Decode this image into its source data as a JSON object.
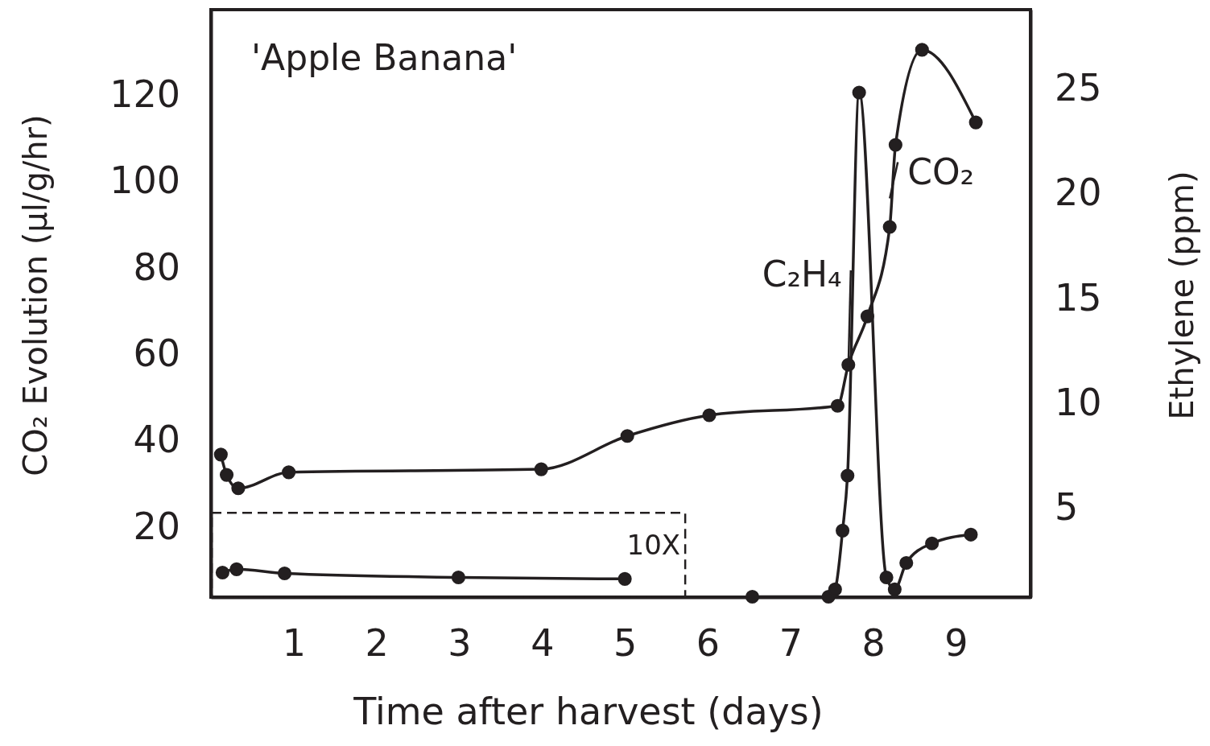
{
  "chart_data": {
    "type": "line",
    "title": "'Apple Banana'",
    "xlabel": "Time after harvest (days)",
    "ylabel": "CO₂ Evolution (µl/g/hr)",
    "y2label": "Ethylene (ppm)",
    "xlim": [
      0,
      9.9
    ],
    "xticks": [
      1,
      2,
      3,
      4,
      5,
      6,
      7,
      8,
      9
    ],
    "ylim": [
      3.7,
      139.7
    ],
    "yticks": [
      20,
      40,
      60,
      80,
      100,
      120
    ],
    "y2lim": [
      0.75,
      28.75
    ],
    "y2ticks": [
      5,
      10,
      15,
      20,
      25
    ],
    "marker": "circle",
    "line_style": "solid",
    "grid": false,
    "series": [
      {
        "color": "#231f20",
        "x": [
          0.12,
          0.19,
          0.33,
          0.94,
          3.99,
          5.03,
          6.02,
          7.57,
          7.7,
          7.93,
          8.2,
          8.27,
          8.59,
          9.24
        ],
        "values": [
          36.7,
          32,
          28.9,
          32.6,
          33.3,
          41,
          45.8,
          48,
          57.5,
          68.7,
          89.4,
          108.4,
          130.4,
          113.6
        ]
      },
      {
        "color": "#231f20",
        "axis": "y2",
        "x": [
          0.14,
          0.31,
          0.89,
          2.99,
          5.0
        ],
        "values": [
          1.92,
          2.08,
          1.88,
          1.69,
          1.62
        ]
      },
      {
        "color": "#231f20",
        "axis": "y2",
        "x": [
          6.54,
          7.46,
          7.54,
          7.63,
          7.69,
          7.83,
          8.16,
          8.26,
          8.4,
          8.71,
          9.18
        ],
        "values": [
          0.77,
          0.77,
          1.12,
          3.92,
          6.54,
          24.8,
          1.69,
          1.12,
          2.38,
          3.31,
          3.73
        ]
      }
    ],
    "annotations": [
      "10X",
      {
        "text": "C₂H₄",
        "x": 7.7,
        "y": 57
      },
      {
        "text": "CO₂",
        "x": 8.2,
        "y": 96
      }
    ]
  }
}
